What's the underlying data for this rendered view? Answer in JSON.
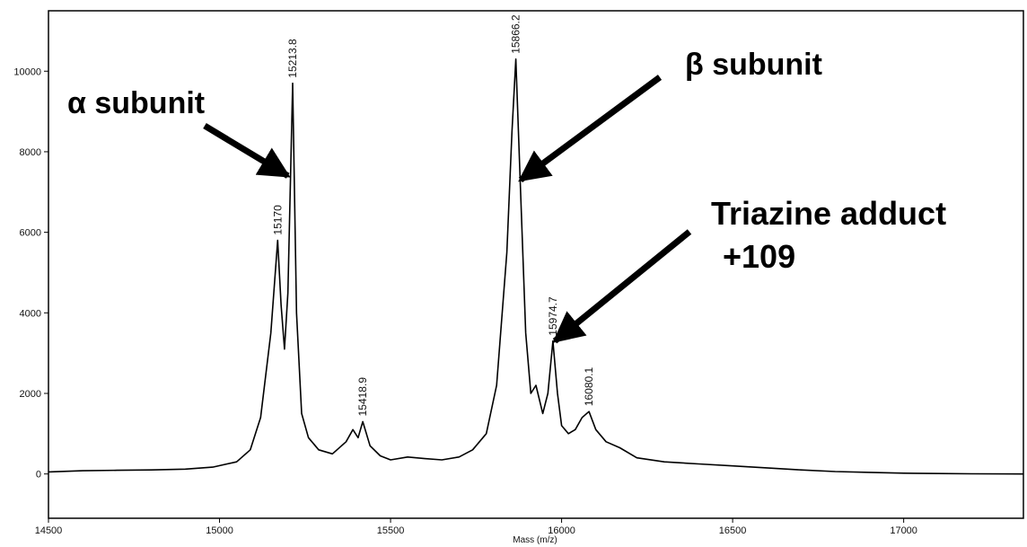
{
  "chart_data": {
    "type": "line",
    "xlabel": "Mass (m/z)",
    "ylabel": "",
    "xlim": [
      14500,
      17350
    ],
    "ylim": [
      -1100,
      11500
    ],
    "x_ticks": [
      14500,
      15000,
      15500,
      16000,
      16500,
      17000
    ],
    "y_ticks": [
      0,
      2000,
      4000,
      6000,
      8000,
      10000
    ],
    "grid": false,
    "legend": "none",
    "series": [
      {
        "color": "#000000",
        "points": [
          [
            14500,
            50
          ],
          [
            14600,
            80
          ],
          [
            14700,
            90
          ],
          [
            14800,
            100
          ],
          [
            14900,
            120
          ],
          [
            14980,
            170
          ],
          [
            15050,
            300
          ],
          [
            15090,
            600
          ],
          [
            15120,
            1400
          ],
          [
            15150,
            3500
          ],
          [
            15170,
            5800
          ],
          [
            15180,
            4200
          ],
          [
            15190,
            3100
          ],
          [
            15200,
            4500
          ],
          [
            15213.8,
            9700
          ],
          [
            15225,
            4000
          ],
          [
            15240,
            1500
          ],
          [
            15260,
            900
          ],
          [
            15290,
            600
          ],
          [
            15330,
            500
          ],
          [
            15370,
            800
          ],
          [
            15390,
            1100
          ],
          [
            15405,
            900
          ],
          [
            15418.9,
            1300
          ],
          [
            15440,
            700
          ],
          [
            15470,
            450
          ],
          [
            15500,
            350
          ],
          [
            15550,
            420
          ],
          [
            15600,
            380
          ],
          [
            15650,
            350
          ],
          [
            15700,
            420
          ],
          [
            15740,
            600
          ],
          [
            15780,
            1000
          ],
          [
            15810,
            2200
          ],
          [
            15840,
            5500
          ],
          [
            15855,
            8500
          ],
          [
            15866.2,
            10300
          ],
          [
            15878,
            7500
          ],
          [
            15895,
            3500
          ],
          [
            15910,
            2000
          ],
          [
            15925,
            2200
          ],
          [
            15945,
            1500
          ],
          [
            15960,
            2000
          ],
          [
            15974.7,
            3300
          ],
          [
            15988,
            2000
          ],
          [
            16000,
            1200
          ],
          [
            16020,
            1000
          ],
          [
            16040,
            1100
          ],
          [
            16060,
            1400
          ],
          [
            16080.1,
            1550
          ],
          [
            16100,
            1100
          ],
          [
            16130,
            800
          ],
          [
            16170,
            650
          ],
          [
            16220,
            400
          ],
          [
            16300,
            300
          ],
          [
            16400,
            250
          ],
          [
            16500,
            200
          ],
          [
            16600,
            150
          ],
          [
            16700,
            100
          ],
          [
            16800,
            60
          ],
          [
            16900,
            40
          ],
          [
            17000,
            20
          ],
          [
            17100,
            10
          ],
          [
            17200,
            5
          ],
          [
            17350,
            0
          ]
        ]
      }
    ],
    "peak_labels": [
      {
        "x": 15170,
        "y": 5800,
        "text": "15170"
      },
      {
        "x": 15213.8,
        "y": 9700,
        "text": "15213.8"
      },
      {
        "x": 15418.9,
        "y": 1300,
        "text": "15418.9"
      },
      {
        "x": 15866.2,
        "y": 10300,
        "text": "15866.2"
      },
      {
        "x": 15974.7,
        "y": 3300,
        "text": "15974.7"
      },
      {
        "x": 16080.1,
        "y": 1550,
        "text": "16080.1"
      }
    ],
    "annotations": [
      {
        "name": "alpha",
        "text_lines": [
          "α subunit"
        ],
        "target": [
          15200,
          7400
        ]
      },
      {
        "name": "beta",
        "text_lines": [
          "β subunit"
        ],
        "target": [
          15880,
          7300
        ]
      },
      {
        "name": "triazine",
        "text_lines": [
          "Triazine adduct",
          "+109"
        ],
        "target": [
          15980,
          3300
        ]
      }
    ]
  }
}
